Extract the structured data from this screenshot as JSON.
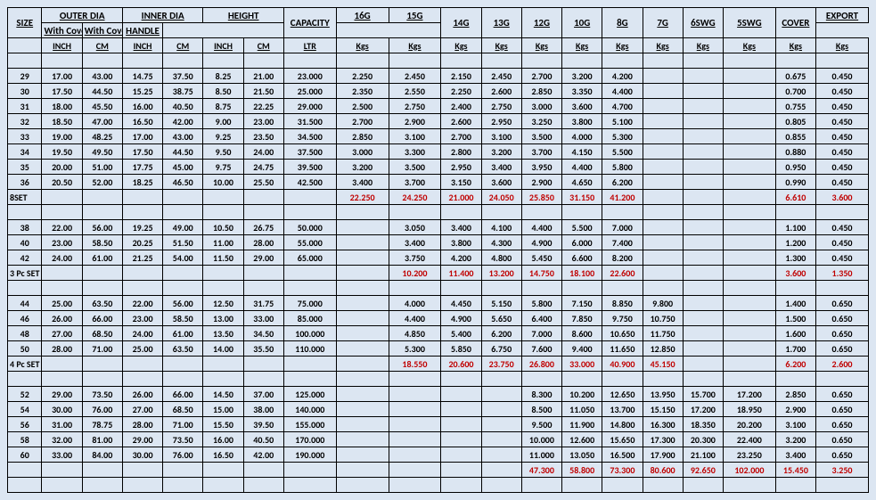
{
  "headers": {
    "top": [
      "SIZE",
      "OUTER DIA",
      "INNER DIA",
      "HEIGHT",
      "CAPACITY",
      "16G",
      "15G",
      "14G",
      "13G",
      "12G",
      "10G",
      "8G",
      "7G",
      "6SWG",
      "5SWG",
      "COVER",
      "EXPORT"
    ],
    "mid": [
      "",
      "",
      "",
      "",
      "",
      "With Cover",
      "With Cover",
      "",
      "",
      "",
      "",
      "",
      "",
      "",
      "",
      "",
      "HANDLE"
    ],
    "sub": [
      "",
      "INCH",
      "CM",
      "INCH",
      "CM",
      "INCH",
      "CM",
      "LTR",
      "Kgs",
      "Kgs",
      "Kgs",
      "Kgs",
      "Kgs",
      "Kgs",
      "Kgs",
      "Kgs",
      "Kgs",
      "Kgs",
      "Kgs",
      "Kgs"
    ]
  },
  "sections": [
    {
      "rows": [
        [
          "29",
          "17.00",
          "43.00",
          "14.75",
          "37.50",
          "8.25",
          "21.00",
          "23.000",
          "2.250",
          "2.450",
          "2.150",
          "2.450",
          "2.700",
          "3.200",
          "4.200",
          "",
          "",
          "0.675",
          "0.450"
        ],
        [
          "30",
          "17.50",
          "44.50",
          "15.25",
          "38.75",
          "8.50",
          "21.50",
          "25.000",
          "2.350",
          "2.550",
          "2.250",
          "2.600",
          "2.850",
          "3.350",
          "4.400",
          "",
          "",
          "0.700",
          "0.450"
        ],
        [
          "31",
          "18.00",
          "45.50",
          "16.00",
          "40.50",
          "8.75",
          "22.25",
          "29.000",
          "2.500",
          "2.750",
          "2.400",
          "2.750",
          "3.000",
          "3.600",
          "4.700",
          "",
          "",
          "0.755",
          "0.450"
        ],
        [
          "32",
          "18.50",
          "47.00",
          "16.50",
          "42.00",
          "9.00",
          "23.00",
          "31.500",
          "2.700",
          "2.900",
          "2.600",
          "2.950",
          "3.250",
          "3.800",
          "5.100",
          "",
          "",
          "0.805",
          "0.450"
        ],
        [
          "33",
          "19.00",
          "48.25",
          "17.00",
          "43.00",
          "9.25",
          "23.50",
          "34.500",
          "2.850",
          "3.100",
          "2.700",
          "3.100",
          "3.500",
          "4.000",
          "5.300",
          "",
          "",
          "0.855",
          "0.450"
        ],
        [
          "34",
          "19.50",
          "49.50",
          "17.50",
          "44.50",
          "9.50",
          "24.00",
          "37.500",
          "3.000",
          "3.300",
          "2.800",
          "3.200",
          "3.700",
          "4.150",
          "5.500",
          "",
          "",
          "0.880",
          "0.450"
        ],
        [
          "35",
          "20.00",
          "51.00",
          "17.75",
          "45.00",
          "9.75",
          "24.75",
          "39.500",
          "3.200",
          "3.500",
          "2.950",
          "3.400",
          "3.950",
          "4.400",
          "5.800",
          "",
          "",
          "0.950",
          "0.450"
        ],
        [
          "36",
          "20.50",
          "52.00",
          "18.25",
          "46.50",
          "10.00",
          "25.50",
          "42.500",
          "3.400",
          "3.700",
          "3.150",
          "3.600",
          "2.900",
          "4.650",
          "6.200",
          "",
          "",
          "0.990",
          "0.450"
        ]
      ],
      "total": [
        "8SET",
        "",
        "",
        "",
        "",
        "",
        "",
        "",
        "22.250",
        "24.250",
        "21.000",
        "24.050",
        "25.850",
        "31.150",
        "41.200",
        "",
        "",
        "6.610",
        "3.600"
      ]
    },
    {
      "rows": [
        [
          "38",
          "22.00",
          "56.00",
          "19.25",
          "49.00",
          "10.50",
          "26.75",
          "50.000",
          "",
          "3.050",
          "3.400",
          "4.100",
          "4.400",
          "5.500",
          "7.000",
          "",
          "",
          "1.100",
          "0.450"
        ],
        [
          "40",
          "23.00",
          "58.50",
          "20.25",
          "51.50",
          "11.00",
          "28.00",
          "55.000",
          "",
          "3.400",
          "3.800",
          "4.300",
          "4.900",
          "6.000",
          "7.400",
          "",
          "",
          "1.200",
          "0.450"
        ],
        [
          "42",
          "24.00",
          "61.00",
          "21.25",
          "54.00",
          "11.50",
          "29.00",
          "65.000",
          "",
          "3.750",
          "4.200",
          "4.800",
          "5.450",
          "6.600",
          "8.200",
          "",
          "",
          "1.300",
          "0.450"
        ]
      ],
      "total": [
        "3 Pc SET",
        "",
        "",
        "",
        "",
        "",
        "",
        "",
        "",
        "10.200",
        "11.400",
        "13.200",
        "14.750",
        "18.100",
        "22.600",
        "",
        "",
        "3.600",
        "1.350"
      ]
    },
    {
      "rows": [
        [
          "44",
          "25.00",
          "63.50",
          "22.00",
          "56.00",
          "12.50",
          "31.75",
          "75.000",
          "",
          "4.000",
          "4.450",
          "5.150",
          "5.800",
          "7.150",
          "8.850",
          "9.800",
          "",
          "1.400",
          "0.650"
        ],
        [
          "46",
          "26.00",
          "66.00",
          "23.00",
          "58.50",
          "13.00",
          "33.00",
          "85.000",
          "",
          "4.400",
          "4.900",
          "5.650",
          "6.400",
          "7.850",
          "9.750",
          "10.750",
          "",
          "1.500",
          "0.650"
        ],
        [
          "48",
          "27.00",
          "68.50",
          "24.00",
          "61.00",
          "13.50",
          "34.50",
          "100.000",
          "",
          "4.850",
          "5.400",
          "6.200",
          "7.000",
          "8.600",
          "10.650",
          "11.750",
          "",
          "1.600",
          "0.650"
        ],
        [
          "50",
          "28.00",
          "71.00",
          "25.00",
          "63.50",
          "14.00",
          "35.50",
          "110.000",
          "",
          "5.300",
          "5.850",
          "6.750",
          "7.600",
          "9.400",
          "11.650",
          "12.850",
          "",
          "1.700",
          "0.650"
        ]
      ],
      "total": [
        "4 Pc SET",
        "",
        "",
        "",
        "",
        "",
        "",
        "",
        "",
        "18.550",
        "20.600",
        "23.750",
        "26.800",
        "33.000",
        "40.900",
        "45.150",
        "",
        "6.200",
        "2.600"
      ]
    },
    {
      "rows": [
        [
          "52",
          "29.00",
          "73.50",
          "26.00",
          "66.00",
          "14.50",
          "37.00",
          "125.000",
          "",
          "",
          "",
          "",
          "8.300",
          "10.200",
          "12.650",
          "13.950",
          "15.700",
          "17.200",
          "2.850",
          "0.650"
        ],
        [
          "54",
          "30.00",
          "76.00",
          "27.00",
          "68.50",
          "15.00",
          "38.00",
          "140.000",
          "",
          "",
          "",
          "",
          "8.500",
          "11.050",
          "13.700",
          "15.150",
          "17.200",
          "18.950",
          "2.900",
          "0.650"
        ],
        [
          "56",
          "31.00",
          "78.75",
          "28.00",
          "71.00",
          "15.50",
          "39.50",
          "155.000",
          "",
          "",
          "",
          "",
          "9.500",
          "11.900",
          "14.800",
          "16.300",
          "18.350",
          "20.200",
          "3.100",
          "0.650"
        ],
        [
          "58",
          "32.00",
          "81.00",
          "29.00",
          "73.50",
          "16.00",
          "40.50",
          "170.000",
          "",
          "",
          "",
          "",
          "10.000",
          "12.600",
          "15.650",
          "17.300",
          "20.300",
          "22.400",
          "3.200",
          "0.650"
        ],
        [
          "60",
          "33.00",
          "84.00",
          "30.00",
          "76.00",
          "16.50",
          "42.00",
          "190.000",
          "",
          "",
          "",
          "",
          "11.000",
          "13.050",
          "16.500",
          "17.900",
          "21.100",
          "23.250",
          "3.400",
          "0.650"
        ]
      ],
      "total": [
        "",
        "",
        "",
        "",
        "",
        "",
        "",
        "",
        "",
        "",
        "",
        "",
        "47.300",
        "58.800",
        "73.300",
        "80.600",
        "92.650",
        "102.000",
        "15.450",
        "3.250"
      ]
    }
  ]
}
